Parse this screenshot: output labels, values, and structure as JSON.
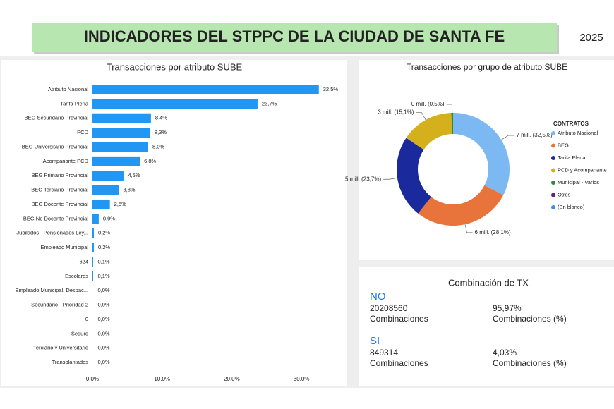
{
  "header": {
    "title": "INDICADORES DEL STPPC DE LA CIUDAD DE SANTA FE",
    "year": "2025"
  },
  "chart_data": [
    {
      "type": "hbar",
      "title": "Transacciones por atributo SUBE",
      "categories": [
        "Atributo Nacional",
        "Tarifa Plena",
        "BEG Secundario Provincial",
        "PCD",
        "BEG Universitario Provincial",
        "Acompanante PCD",
        "BEG Primario Provincial",
        "BEG Terciario Provincial",
        "BEG Docente Provincial",
        "BEG No Docente Provincial",
        "Jubilados - Pensionados Ley...",
        "Empleado Municipal",
        "624",
        "Escolares",
        "Empleado Municipal. Despac...",
        "Secundario - Prioridad 2",
        "0",
        "Seguro",
        "Terciario y Universitario",
        "Transplantados"
      ],
      "values": [
        32.5,
        23.7,
        8.4,
        8.3,
        8.0,
        6.8,
        4.5,
        3.8,
        2.5,
        0.9,
        0.2,
        0.2,
        0.1,
        0.1,
        0,
        0,
        0,
        0,
        0,
        0
      ],
      "value_labels": [
        "32,5%",
        "23,7%",
        "8,4%",
        "8,3%",
        "8,0%",
        "6,8%",
        "4,5%",
        "3,8%",
        "2,5%",
        "0,9%",
        "0,2%",
        "0,2%",
        "0,1%",
        "0,1%",
        "0,0%",
        "0,0%",
        "0,0%",
        "0,0%",
        "0,0%",
        "0,0%"
      ],
      "color": "#2196f3",
      "xlim": [
        0,
        36
      ],
      "xticks": [
        {
          "value": 0,
          "label": "0,0%"
        },
        {
          "value": 10,
          "label": "10,0%"
        },
        {
          "value": 20,
          "label": "20,0%"
        },
        {
          "value": 30,
          "label": "30,0%"
        }
      ],
      "grid": false
    },
    {
      "type": "donut",
      "title": "Transacciones por grupo de atributo SUBE",
      "legend_title": "CONTRATOS",
      "legend": "right",
      "categories": [
        "Atributo Nacional",
        "BEG",
        "Tarifa Plena",
        "PCD y Acompanante",
        "Municipal - Varios",
        "Otros",
        "(En blanco)"
      ],
      "values": [
        32.5,
        28.1,
        23.7,
        15.1,
        0.5,
        0,
        0
      ],
      "value_labels": [
        "7 mill. (32,5%)",
        "6 mill. (28,1%)",
        "5 mill. (23,7%)",
        "3 mill. (15,1%)",
        "0 mill. (0,5%)",
        null,
        null
      ],
      "colors": [
        "#7cb9f2",
        "#e8743b",
        "#1a2a9c",
        "#d4b01c",
        "#2e8b2e",
        "#6b1f7c",
        "#3a8ee6"
      ]
    }
  ],
  "card": {
    "title": "Combinación de TX",
    "rows": [
      {
        "label": "NO",
        "count": 20208560,
        "count_label": "Combinaciones",
        "pct": "95,97%",
        "pct_label": "Combinaciones (%)"
      },
      {
        "label": "SI",
        "count": 849314,
        "count_label": "Combinaciones",
        "pct": "4,03%",
        "pct_label": "Combinaciones (%)"
      }
    ]
  }
}
